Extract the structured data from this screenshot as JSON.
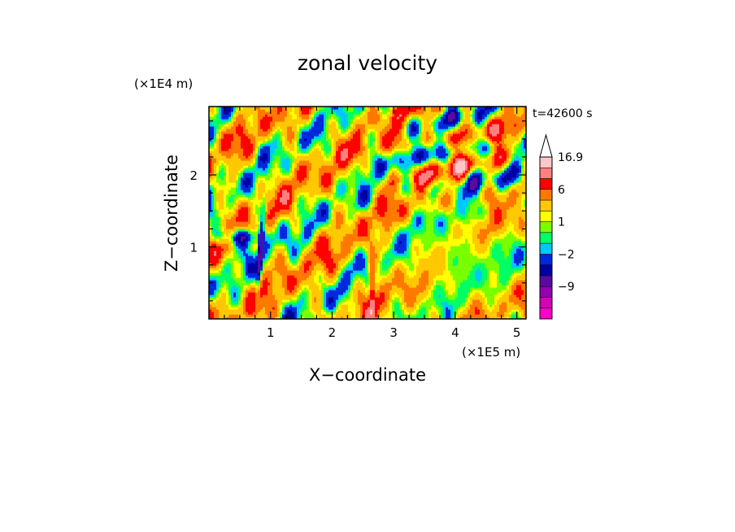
{
  "chart_data": {
    "type": "heatmap",
    "title": "zonal velocity",
    "xlabel": "X−coordinate",
    "ylabel": "Z−coordinate",
    "x_scale_label": "(×1E5 m)",
    "y_scale_label": "(×1E4 m)",
    "time_label": "t=42600 s",
    "xlim": [
      0,
      5.15
    ],
    "ylim": [
      0,
      2.95
    ],
    "x_ticks": [
      1,
      2,
      3,
      4,
      5
    ],
    "y_ticks": [
      1,
      2
    ],
    "colorbar": {
      "tick_labels": [
        "16.9",
        "6",
        "1",
        "−2",
        "−9"
      ],
      "tick_values": [
        16.9,
        6,
        1,
        -2,
        -9
      ],
      "extend": "max",
      "levels": [
        -15,
        -12,
        -9,
        -6,
        -4,
        -2,
        -1,
        0,
        1,
        2,
        4,
        6,
        9,
        12,
        16.9
      ],
      "colors": [
        "#ff00c8",
        "#d800b4",
        "#9400b0",
        "#5a0aa0",
        "#0000a0",
        "#0028dc",
        "#00c8ff",
        "#00ff64",
        "#78ff00",
        "#ffff00",
        "#ffc800",
        "#ff7800",
        "#ff0000",
        "#ff8080",
        "#ffc8c8",
        "#ffffff"
      ]
    }
  }
}
